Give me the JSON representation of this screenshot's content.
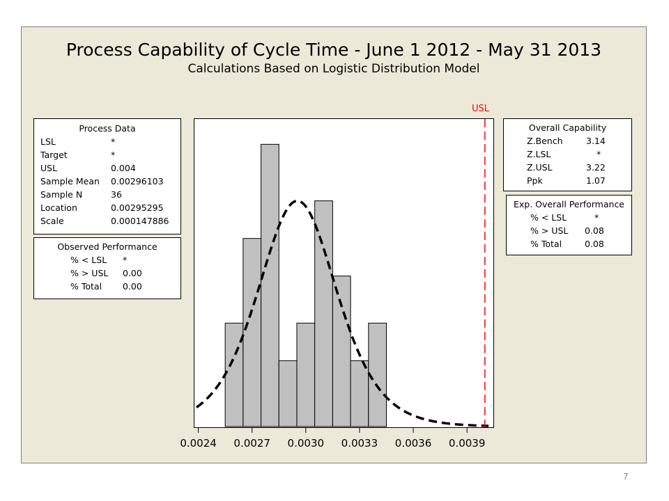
{
  "page": {
    "number": "7"
  },
  "chart_data": {
    "type": "bar",
    "title": "Process Capability of Cycle Time - June 1 2012 - May 31 2013",
    "subtitle": "Calculations Based on Logistic Distribution Model",
    "x_ticks": [
      "0.0024",
      "0.0027",
      "0.0030",
      "0.0033",
      "0.0036",
      "0.0039"
    ],
    "x_tick_values": [
      0.0024,
      0.0027,
      0.003,
      0.0033,
      0.0036,
      0.0039
    ],
    "xlim": [
      0.00239,
      0.00402
    ],
    "ylim": [
      0,
      0.18
    ],
    "bins": [
      {
        "start": 0.00255,
        "end": 0.00265,
        "value": 0.0611
      },
      {
        "start": 0.00265,
        "end": 0.00275,
        "value": 0.1111
      },
      {
        "start": 0.00275,
        "end": 0.00285,
        "value": 0.1667
      },
      {
        "start": 0.00285,
        "end": 0.00295,
        "value": 0.0389
      },
      {
        "start": 0.00295,
        "end": 0.00305,
        "value": 0.0611
      },
      {
        "start": 0.00305,
        "end": 0.00315,
        "value": 0.1333
      },
      {
        "start": 0.00315,
        "end": 0.00325,
        "value": 0.0889
      },
      {
        "start": 0.00325,
        "end": 0.00335,
        "value": 0.0389
      },
      {
        "start": 0.00335,
        "end": 0.00345,
        "value": 0.0611
      }
    ],
    "fit_curve": {
      "distribution": "Logistic",
      "location": 0.00295295,
      "scale": 0.000147886,
      "peak_density": 0.1333,
      "line_style": "dashed",
      "color": "#000000"
    },
    "usl": {
      "label": "USL",
      "value": 0.004,
      "color": "#ff0000"
    },
    "bar_color": "#c0c0c0",
    "legend": "none"
  },
  "process_data": {
    "header": "Process Data",
    "rows": [
      {
        "label": "LSL",
        "value": "*"
      },
      {
        "label": "Target",
        "value": "*"
      },
      {
        "label": "USL",
        "value": "0.004"
      },
      {
        "label": "Sample Mean",
        "value": "0.00296103"
      },
      {
        "label": "Sample N",
        "value": "36"
      },
      {
        "label": "Location",
        "value": "0.00295295"
      },
      {
        "label": "Scale",
        "value": "0.000147886"
      }
    ]
  },
  "observed_performance": {
    "header": "Observed Performance",
    "rows": [
      {
        "label": "% < LSL",
        "value": "*"
      },
      {
        "label": "% > USL",
        "value": "0.00"
      },
      {
        "label": "% Total",
        "value": "0.00"
      }
    ]
  },
  "overall_capability": {
    "header": "Overall Capability",
    "rows": [
      {
        "label": "Z.Bench",
        "value": "3.14"
      },
      {
        "label": "Z.LSL",
        "value": "*"
      },
      {
        "label": "Z.USL",
        "value": "3.22"
      },
      {
        "label": "Ppk",
        "value": "1.07"
      }
    ]
  },
  "exp_overall_performance": {
    "header": "Exp. Overall Performance",
    "rows": [
      {
        "label": "% < LSL",
        "value": "*"
      },
      {
        "label": "% > USL",
        "value": "0.08"
      },
      {
        "label": "% Total",
        "value": "0.08"
      }
    ]
  }
}
